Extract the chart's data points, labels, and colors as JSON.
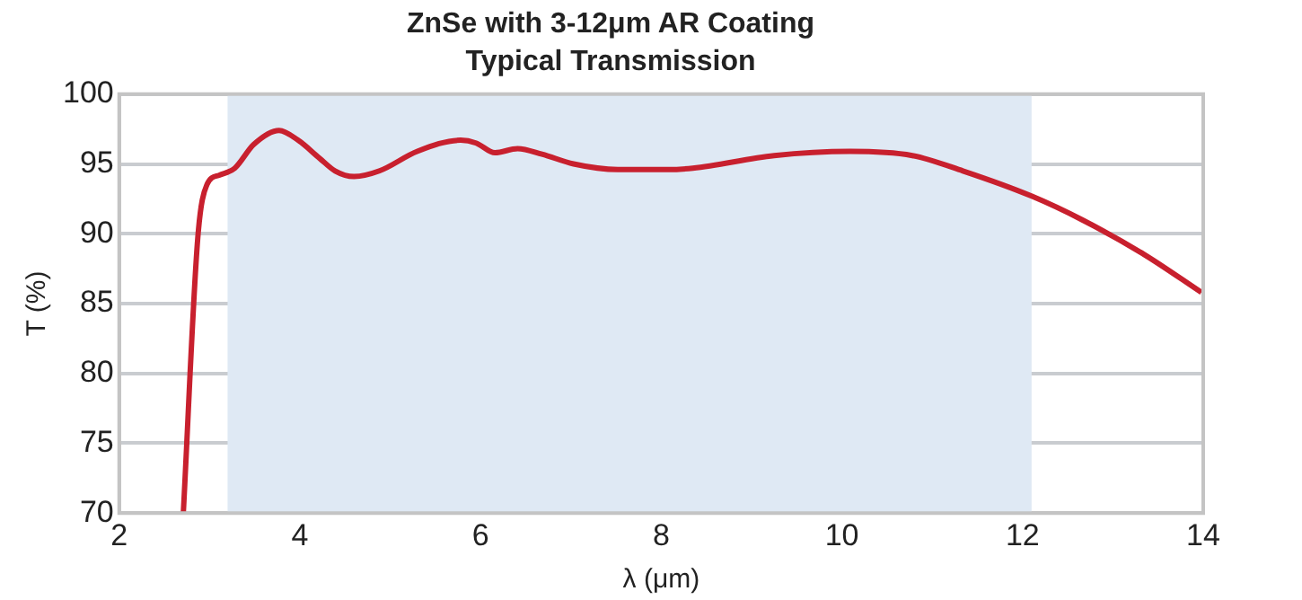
{
  "chart_data": {
    "type": "line",
    "title": "ZnSe with 3-12μm AR Coating",
    "subtitle": "Typical Transmission",
    "xlabel": "λ (μm)",
    "ylabel": "T (%)",
    "xlim": [
      2,
      14
    ],
    "xticks": [
      2,
      4,
      6,
      8,
      10,
      12,
      14
    ],
    "ylim": [
      70,
      100
    ],
    "yticks": [
      70,
      75,
      80,
      85,
      90,
      95,
      100
    ],
    "grid": "y",
    "legend": false,
    "bands": [
      {
        "axis": "x",
        "from": 3.2,
        "to": 12.1,
        "color": "#dfe9f4"
      }
    ],
    "series": [
      {
        "color": "#c8202e",
        "x": [
          2.71,
          2.87,
          2.97,
          3.11,
          3.28,
          3.49,
          3.77,
          3.98,
          4.22,
          4.39,
          4.6,
          4.88,
          5.3,
          5.78,
          5.95,
          6.16,
          6.41,
          6.68,
          7.03,
          7.52,
          8.07,
          8.35,
          9.25,
          10.09,
          10.78,
          11.34,
          12.1,
          12.66,
          13.35,
          13.98
        ],
        "values": [
          70,
          89.7,
          93.5,
          94.2,
          94.7,
          96.4,
          97.4,
          96.7,
          95.4,
          94.5,
          94.1,
          94.5,
          95.9,
          96.7,
          96.5,
          95.8,
          96.1,
          95.7,
          95,
          94.6,
          94.6,
          94.7,
          95.6,
          95.9,
          95.6,
          94.5,
          92.7,
          91,
          88.5,
          85.8
        ]
      }
    ]
  }
}
